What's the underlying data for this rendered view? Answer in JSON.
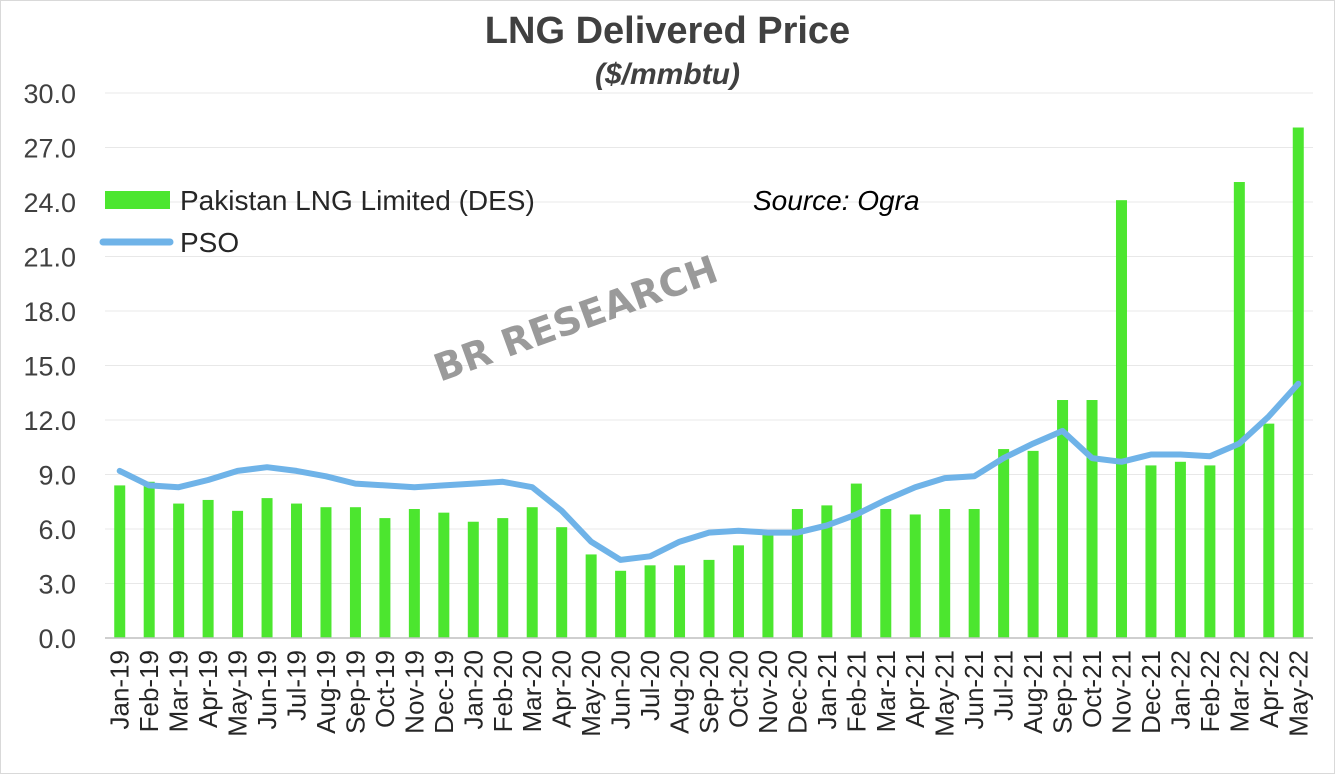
{
  "chart_data": {
    "type": "bar",
    "title": "LNG Delivered Price",
    "subtitle": "($/mmbtu)",
    "source_note": "Source: Ogra",
    "watermark": "BR RESEARCH",
    "ylim": [
      0,
      30
    ],
    "yticks": [
      "0.0",
      "3.0",
      "6.0",
      "9.0",
      "12.0",
      "15.0",
      "18.0",
      "21.0",
      "24.0",
      "27.0",
      "30.0"
    ],
    "grid": true,
    "legend_position": "top-left",
    "categories": [
      "Jan-19",
      "Feb-19",
      "Mar-19",
      "Apr-19",
      "May-19",
      "Jun-19",
      "Jul-19",
      "Aug-19",
      "Sep-19",
      "Oct-19",
      "Nov-19",
      "Dec-19",
      "Jan-20",
      "Feb-20",
      "Mar-20",
      "Apr-20",
      "May-20",
      "Jun-20",
      "Jul-20",
      "Aug-20",
      "Sep-20",
      "Oct-20",
      "Nov-20",
      "Dec-20",
      "Jan-21",
      "Feb-21",
      "Mar-21",
      "Apr-21",
      "May-21",
      "Jun-21",
      "Jul-21",
      "Aug-21",
      "Sep-21",
      "Oct-21",
      "Nov-21",
      "Dec-21",
      "Jan-22",
      "Feb-22",
      "Mar-22",
      "Apr-22",
      "May-22"
    ],
    "series": [
      {
        "name": "Pakistan LNG Limited (DES)",
        "kind": "bar",
        "color": "#4ce62f",
        "values": [
          8.4,
          8.6,
          7.4,
          7.6,
          7.0,
          7.7,
          7.4,
          7.2,
          7.2,
          6.6,
          7.1,
          6.9,
          6.4,
          6.6,
          7.2,
          6.1,
          4.6,
          3.7,
          4.0,
          4.0,
          4.3,
          5.1,
          5.8,
          7.1,
          7.3,
          8.5,
          7.1,
          6.8,
          7.1,
          7.1,
          10.4,
          10.3,
          13.1,
          13.1,
          24.1,
          9.5,
          9.7,
          9.5,
          25.1,
          11.8,
          28.1
        ]
      },
      {
        "name": "PSO",
        "kind": "line",
        "color": "#6fb3e8",
        "values": [
          9.2,
          8.4,
          8.3,
          8.7,
          9.2,
          9.4,
          9.2,
          8.9,
          8.5,
          8.4,
          8.3,
          8.4,
          8.5,
          8.6,
          8.3,
          7.0,
          5.3,
          4.3,
          4.5,
          5.3,
          5.8,
          5.9,
          5.8,
          5.8,
          6.2,
          6.8,
          7.6,
          8.3,
          8.8,
          8.9,
          9.9,
          10.7,
          11.4,
          9.9,
          9.7,
          10.1,
          10.1,
          10.0,
          10.7,
          12.2,
          14.0
        ]
      }
    ]
  }
}
